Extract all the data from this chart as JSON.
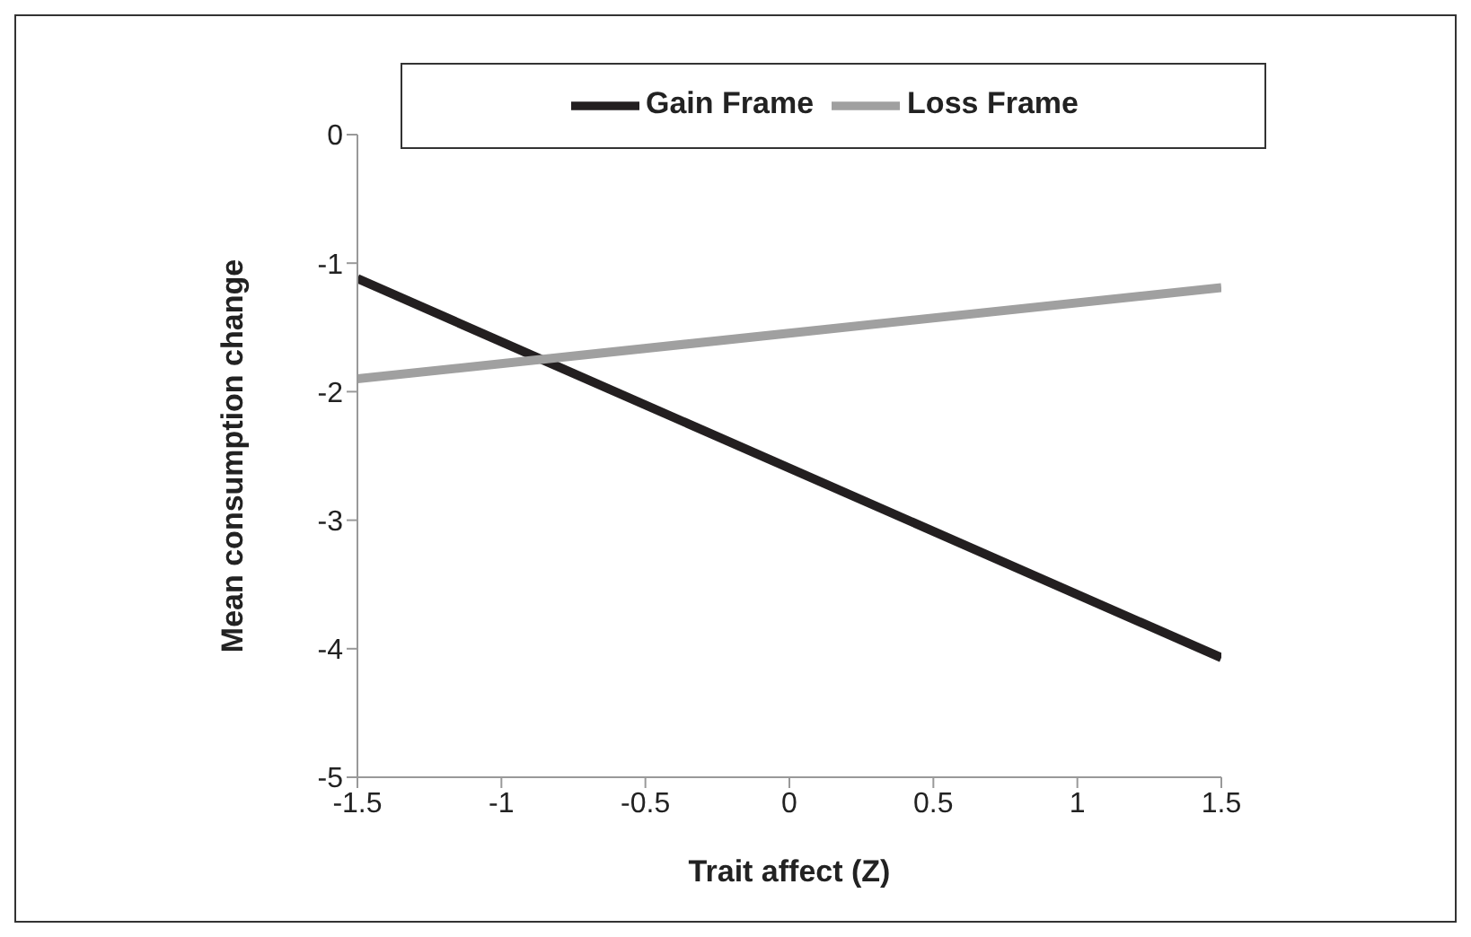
{
  "chart_data": {
    "type": "line",
    "xlabel": "Trait affect (Z)",
    "ylabel": "Mean consumption change",
    "x": [
      -1.5,
      1.5
    ],
    "series": [
      {
        "name": "Gain Frame",
        "color": "#231f20",
        "values": [
          -1.12,
          -4.07
        ]
      },
      {
        "name": "Loss Frame",
        "color": "#a0a0a0",
        "values": [
          -1.9,
          -1.19
        ]
      }
    ],
    "xlim": [
      -1.5,
      1.5
    ],
    "xticks": [
      -1.5,
      -1,
      -0.5,
      0,
      0.5,
      1,
      1.5
    ],
    "ylim": [
      -5,
      0
    ],
    "yticks": [
      -5,
      -4,
      -3,
      -2,
      -1,
      0
    ],
    "grid": false,
    "legend": "top",
    "marker": "none",
    "line_style": "solid"
  }
}
